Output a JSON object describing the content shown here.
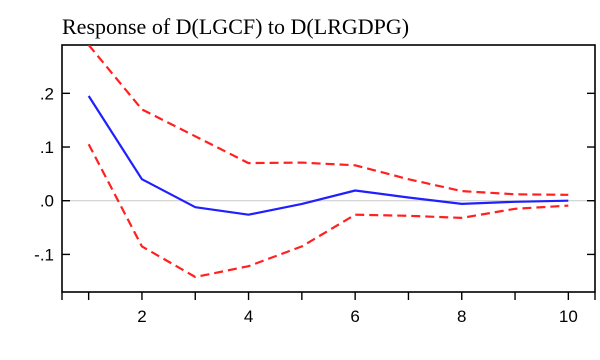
{
  "chart_data": {
    "type": "line",
    "title": "Response of D(LGCF) to D(LRGDPG)",
    "xlabel": "",
    "ylabel": "",
    "x": [
      1,
      2,
      3,
      4,
      5,
      6,
      7,
      8,
      9,
      10
    ],
    "xlim": [
      0.5,
      10.5
    ],
    "ylim": [
      -0.17,
      0.29
    ],
    "xticks": [
      1,
      2,
      3,
      4,
      5,
      6,
      7,
      8,
      9,
      10
    ],
    "xtick_labels": [
      "",
      "2",
      "",
      "4",
      "",
      "6",
      "",
      "8",
      "",
      "10"
    ],
    "yticks": [
      0.2,
      0.1,
      0.0,
      -0.1
    ],
    "ytick_labels": [
      ".2",
      ".1",
      ".0",
      "-.1"
    ],
    "zero_line": true,
    "grid": false,
    "legend": "none",
    "series": [
      {
        "role": "response",
        "values": [
          0.195,
          0.04,
          -0.012,
          -0.026,
          -0.006,
          0.019,
          0.006,
          -0.006,
          -0.002,
          0.0
        ],
        "color": "#1f1fff",
        "style": "solid"
      },
      {
        "role": "upper-band",
        "values": [
          0.29,
          0.17,
          0.12,
          0.07,
          0.071,
          0.066,
          0.04,
          0.018,
          0.012,
          0.011
        ],
        "color": "#ff2020",
        "style": "dashed"
      },
      {
        "role": "lower-band",
        "values": [
          0.105,
          -0.085,
          -0.142,
          -0.122,
          -0.085,
          -0.026,
          -0.028,
          -0.032,
          -0.015,
          -0.009
        ],
        "color": "#ff2020",
        "style": "dashed"
      }
    ]
  }
}
